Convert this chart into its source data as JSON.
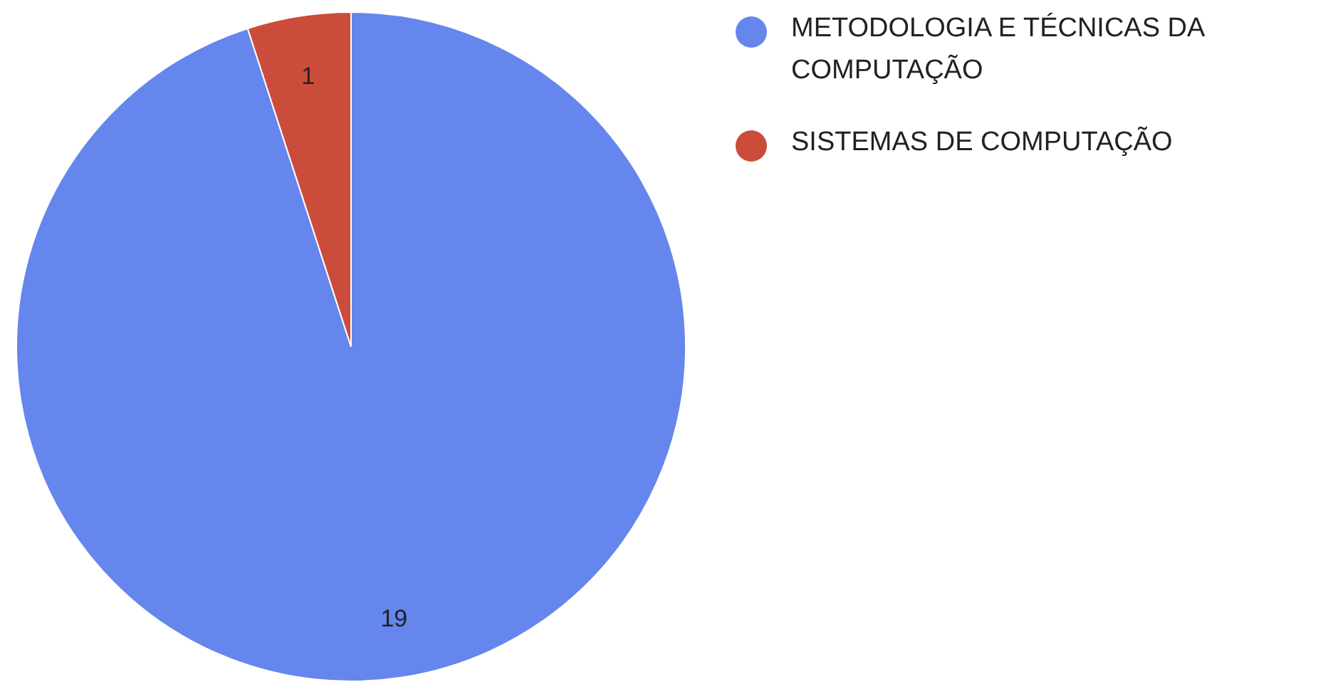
{
  "chart_data": {
    "type": "pie",
    "categories": [
      "METODOLOGIA E TÉCNICAS DA COMPUTAÇÃO",
      "SISTEMAS DE COMPUTAÇÃO"
    ],
    "values": [
      19,
      1
    ],
    "colors": [
      "#6586ec",
      "#cc4c3b"
    ],
    "data_labels": true,
    "legend": "right"
  }
}
